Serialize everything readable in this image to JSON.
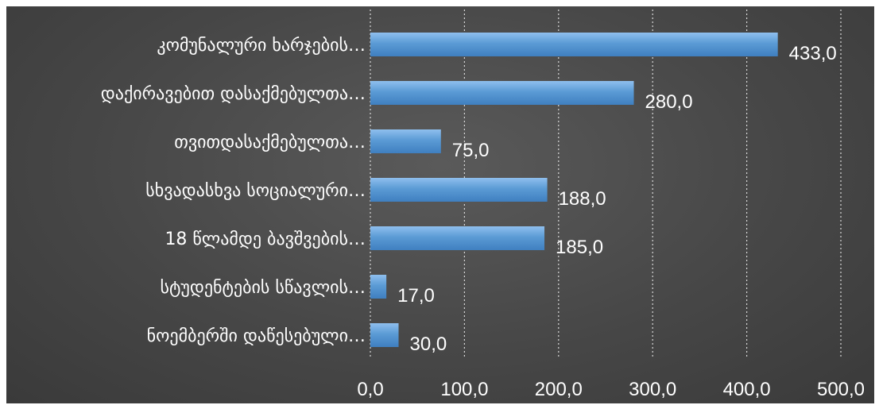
{
  "chart_data": {
    "type": "bar",
    "orientation": "horizontal",
    "categories": [
      "კომუნალური ხარჯების…",
      "დაქირავებით დასაქმებულთა…",
      "თვითდასაქმებულთა…",
      "სხვადასხვა სოციალური…",
      "18 წლამდე ბავშვების…",
      "სტუდენტების სწავლის…",
      "ნოემბერში დაწესებული…"
    ],
    "values": [
      433.0,
      280.0,
      75.0,
      188.0,
      185.0,
      17.0,
      30.0
    ],
    "value_labels": [
      "433,0",
      "280,0",
      "75,0",
      "188,0",
      "185,0",
      "17,0",
      "30,0"
    ],
    "xlim": [
      0,
      500
    ],
    "x_ticks": [
      0,
      100,
      200,
      300,
      400,
      500
    ],
    "x_tick_labels": [
      "0,0",
      "100,0",
      "200,0",
      "300,0",
      "400,0",
      "500,0"
    ],
    "grid": "vertical dotted",
    "legend": "none",
    "title": "",
    "xlabel": "",
    "ylabel": "",
    "colors": {
      "bar_top": "#8fbfee",
      "bar_mid": "#5b9bd5",
      "bar_bottom": "#3f7fc0",
      "text": "#ffffff",
      "grid": "#d8d8d8"
    }
  }
}
